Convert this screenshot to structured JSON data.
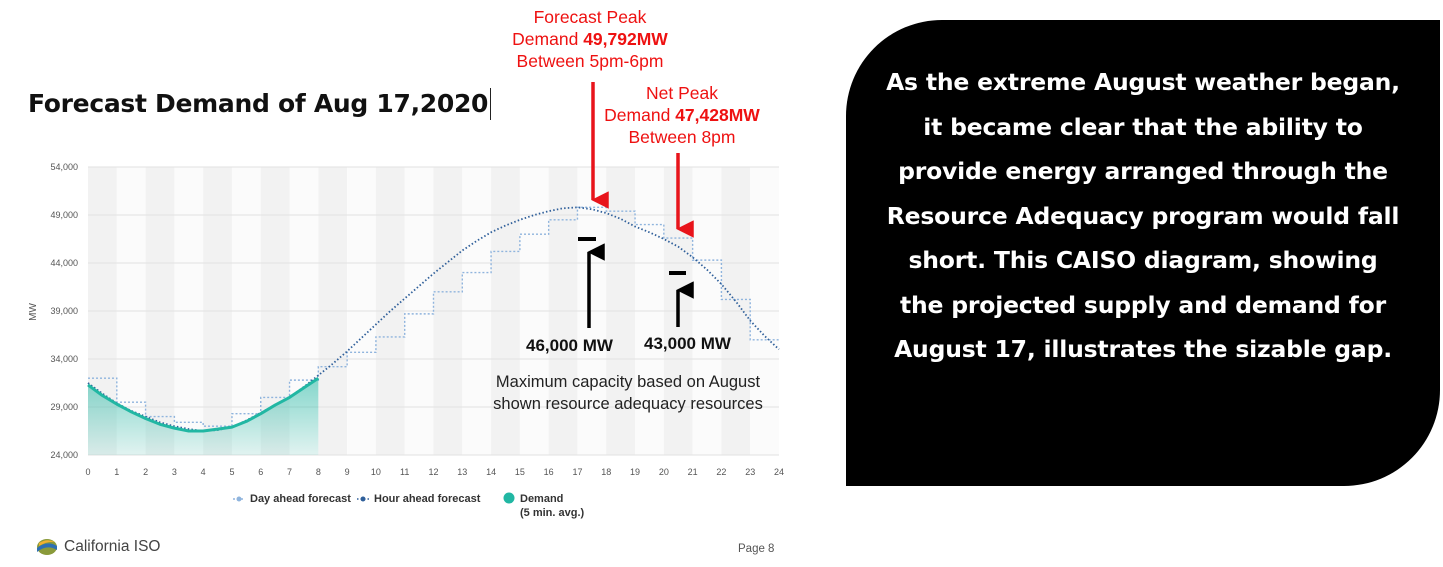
{
  "slide": {
    "title": "Forecast Demand of Aug 17,2020",
    "page": "Page 8",
    "logo_text": "California ISO",
    "panel_text": "As the extreme August weather began, it became clear that the ability to provide energy arranged through the Resource Adequacy program would fall short.  This CAISO diagram, showing the projected supply and demand for August 17, illustrates the sizable gap."
  },
  "annotations": {
    "forecast_peak": {
      "line1": "Forecast Peak",
      "line2_prefix": "Demand ",
      "line2_value": "49,792MW",
      "line3": "Between 5pm-6pm"
    },
    "net_peak": {
      "line1": "Net Peak",
      "line2_prefix": "Demand ",
      "line2_value": "47,428MW",
      "line3": "Between 8pm"
    },
    "capacity_left": "46,000 MW",
    "capacity_right": "43,000 MW",
    "capacity_note": "Maximum capacity based on August shown resource adequacy resources"
  },
  "colors": {
    "accent_red": "#e8141b",
    "day_ahead": "#8fb4dd",
    "hour_ahead": "#2f5f9a",
    "demand": "#21b7a3",
    "panel": "#000000"
  },
  "chart_data": {
    "type": "line",
    "xlabel": "",
    "ylabel": "MW",
    "xlim": [
      0,
      24
    ],
    "ylim": [
      24000,
      54000
    ],
    "yticks": [
      "54,000",
      "49,000",
      "44,000",
      "39,000",
      "34,000",
      "29,000",
      "24,000"
    ],
    "xticks": [
      "0",
      "1",
      "2",
      "3",
      "4",
      "5",
      "6",
      "7",
      "8",
      "9",
      "10",
      "11",
      "12",
      "13",
      "14",
      "15",
      "16",
      "17",
      "18",
      "19",
      "20",
      "21",
      "22",
      "23",
      "24"
    ],
    "grid": true,
    "legend_position": "bottom",
    "legend": [
      "Day ahead forecast",
      "Hour ahead forecast",
      "Demand",
      "(5 min. avg.)"
    ],
    "series": [
      {
        "name": "Day ahead forecast",
        "style": "step-dotted",
        "x": [
          0,
          1,
          2,
          3,
          4,
          5,
          6,
          7,
          8,
          9,
          10,
          11,
          12,
          13,
          14,
          15,
          16,
          17,
          18,
          19,
          20,
          21,
          22,
          23
        ],
        "values": [
          32000,
          29500,
          28000,
          27400,
          27000,
          28300,
          30000,
          31800,
          33200,
          34700,
          36300,
          38700,
          41000,
          43000,
          45200,
          47000,
          48500,
          49800,
          49400,
          48000,
          46600,
          44300,
          40200,
          36000
        ]
      },
      {
        "name": "Hour ahead forecast",
        "style": "dotted",
        "x": [
          0,
          0.5,
          1,
          1.5,
          2,
          2.5,
          3,
          3.5,
          4,
          4.5,
          5,
          5.5,
          6,
          6.5,
          7,
          7.5,
          8,
          8.5,
          9,
          9.5,
          10,
          10.5,
          11,
          11.5,
          12,
          12.5,
          13,
          13.5,
          14,
          14.5,
          15,
          15.5,
          16,
          16.5,
          17,
          17.5,
          18,
          18.5,
          19,
          19.5,
          20,
          20.5,
          21,
          21.5,
          22,
          22.5,
          23,
          23.5,
          24
        ],
        "values": [
          31500,
          30400,
          29400,
          28600,
          28000,
          27400,
          27000,
          26700,
          26500,
          26600,
          26900,
          27600,
          28400,
          29200,
          30000,
          31100,
          32300,
          33500,
          34800,
          36200,
          37600,
          39000,
          40300,
          41600,
          42900,
          44100,
          45300,
          46300,
          47200,
          47900,
          48500,
          49000,
          49400,
          49700,
          49800,
          49600,
          49200,
          48600,
          47800,
          47200,
          46500,
          45700,
          44600,
          43300,
          41800,
          40000,
          38000,
          36400,
          35000
        ]
      },
      {
        "name": "Demand",
        "style": "solid-area",
        "x": [
          0,
          0.5,
          1,
          1.5,
          2,
          2.5,
          3,
          3.5,
          4,
          4.5,
          5,
          5.5,
          6,
          6.5,
          7,
          7.5,
          8
        ],
        "values": [
          31300,
          30200,
          29300,
          28500,
          27800,
          27200,
          26800,
          26500,
          26500,
          26700,
          26900,
          27500,
          28300,
          29200,
          30000,
          31000,
          32000
        ]
      }
    ]
  }
}
